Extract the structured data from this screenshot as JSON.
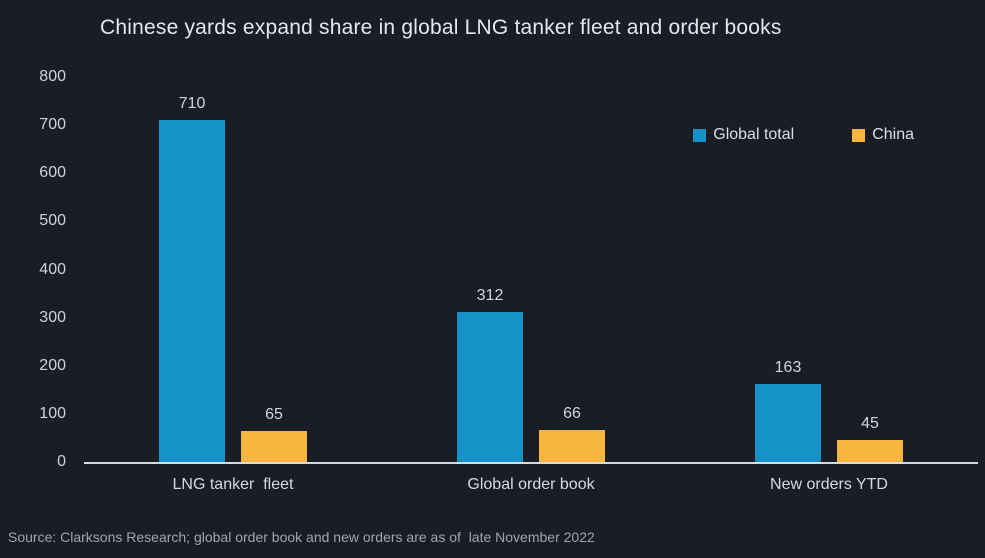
{
  "source_note": "Source: Clarksons Research; global order book and new orders are as of  late November 2022",
  "colors": {
    "background": "#1a1d26",
    "global_total": "#1593c6",
    "china": "#f6b63d",
    "axis_line": "#d8dadd",
    "title_text": "#e4e7eb",
    "muted_text": "#a0a4ac"
  },
  "chart_data": {
    "type": "bar",
    "title": "Chinese yards expand share in global LNG tanker fleet and order books",
    "categories": [
      "LNG tanker  fleet",
      "Global order book",
      "New orders YTD"
    ],
    "series": [
      {
        "name": "Global total",
        "color": "#1593c6",
        "values": [
          710,
          312,
          163
        ]
      },
      {
        "name": "China",
        "color": "#f6b63d",
        "values": [
          65,
          66,
          45
        ]
      }
    ],
    "ylim": [
      0,
      800
    ],
    "yticks": [
      0,
      100,
      200,
      300,
      400,
      500,
      600,
      700,
      800
    ],
    "grid": false,
    "legend_position": "top-right",
    "value_labels": true
  }
}
